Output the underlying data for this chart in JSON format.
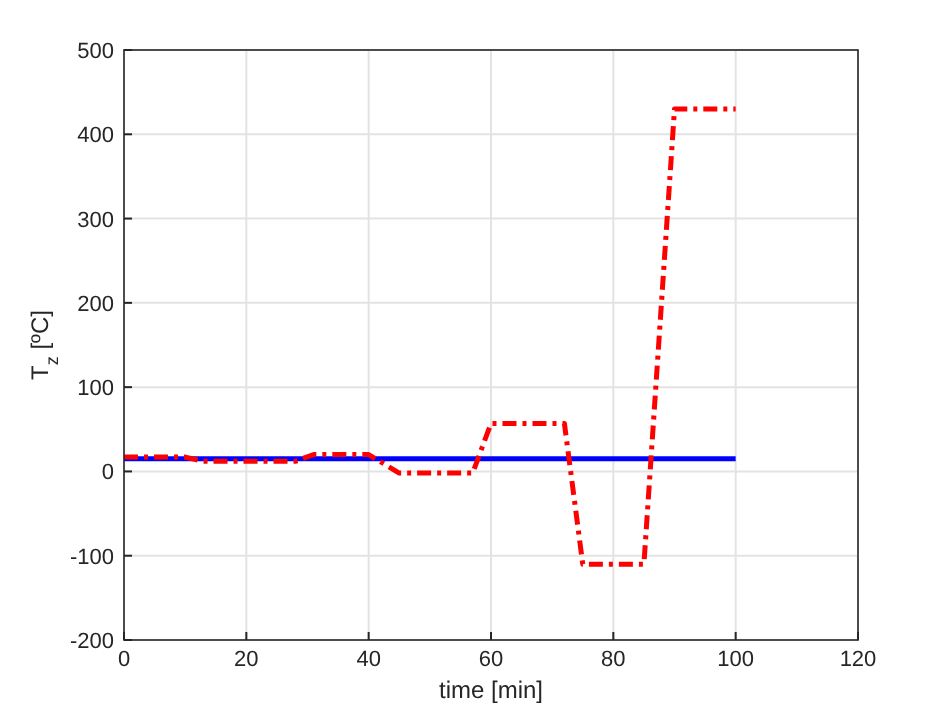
{
  "chart_data": {
    "type": "line",
    "xlabel": "time [min]",
    "ylabel": "T$_{z}$ [ºC]",
    "xlim": [
      0,
      120
    ],
    "xticks": [
      0,
      20,
      40,
      60,
      80,
      100,
      120
    ],
    "ylim": [
      -200,
      500
    ],
    "yticks": [
      -200,
      -100,
      0,
      100,
      200,
      300,
      400,
      500
    ],
    "grid": true,
    "series": [
      {
        "color": "#0000ff",
        "line_style": "solid",
        "x": [
          0,
          100
        ],
        "values": [
          15,
          15
        ]
      },
      {
        "color": "#ff0000",
        "line_style": "dashed",
        "x": [
          0,
          10,
          13,
          28,
          31,
          40,
          45,
          57,
          60,
          72,
          75,
          85,
          90,
          100
        ],
        "values": [
          17,
          17,
          12,
          12,
          20,
          20,
          -2,
          -2,
          57,
          57,
          -110,
          -110,
          430,
          430
        ]
      }
    ]
  }
}
